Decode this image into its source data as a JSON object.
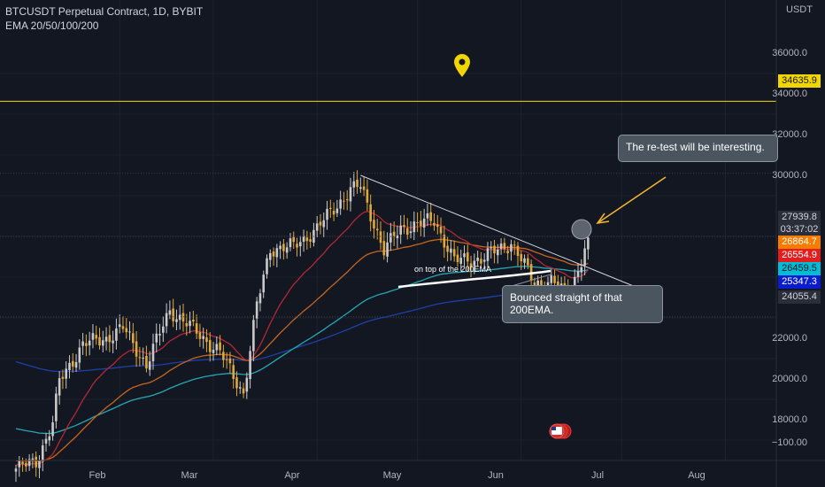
{
  "header": {
    "title": "BTCUSDT Perpetual Contract, 1D, BYBIT",
    "indicator": "EMA 20/50/100/200"
  },
  "currency_label": "USDT",
  "y_axis": {
    "ticks": [
      "36000.0",
      "34000.0",
      "32000.0",
      "30000.0",
      "22000.0",
      "20000.0",
      "18000.0",
      "−100.00"
    ]
  },
  "x_axis": {
    "ticks": [
      "Feb",
      "Mar",
      "Apr",
      "May",
      "Jun",
      "Jul",
      "Aug"
    ]
  },
  "price_tags": {
    "alert_level": "34635.9",
    "last_price": "27939.8",
    "countdown": "03:37:02",
    "ema_20": "26864.7",
    "ema_50": "26554.9",
    "ema_100": "26459.5",
    "ema_200": "25347.3",
    "support_level": "24055.4"
  },
  "annotations": {
    "retest": "The re-test will be interesting.",
    "bounce": "Bounced straight of that 200EMA.",
    "ema_note": "on top of the 200EMA"
  },
  "colors": {
    "background": "#131722",
    "up_candle": "#c9c9c9",
    "down_candle": "#e0a83a",
    "ema_20": "#b22833",
    "ema_50": "#c6661d",
    "ema_100": "#26a7b5",
    "ema_200": "#1f3fa8",
    "alert_line": "#f2d600"
  },
  "chart_data": {
    "type": "candlestick",
    "title": "BTCUSDT Perpetual Contract, 1D, BYBIT",
    "indicators": [
      "EMA 20",
      "EMA 50",
      "EMA 100",
      "EMA 200"
    ],
    "y_unit": "USDT",
    "ylim": [
      16500,
      38000
    ],
    "x_months": [
      "Feb",
      "Mar",
      "Apr",
      "May",
      "Jun",
      "Jul",
      "Aug"
    ],
    "horizontal_levels": [
      34635.9,
      24055.4
    ],
    "trendline": {
      "start": [
        "Apr 14",
        31000
      ],
      "end": [
        "Jul 10",
        25200
      ]
    },
    "ema_last": {
      "ema_20": 26864.7,
      "ema_50": 26554.9,
      "ema_100": 26459.5,
      "ema_200": 25347.3
    },
    "last_close": 27939.8,
    "approx_closes": [
      {
        "date": "Jan 01",
        "close": 16600
      },
      {
        "date": "Jan 07",
        "close": 16950
      },
      {
        "date": "Jan 12",
        "close": 18800
      },
      {
        "date": "Jan 14",
        "close": 20900
      },
      {
        "date": "Jan 21",
        "close": 22700
      },
      {
        "date": "Jan 28",
        "close": 23000
      },
      {
        "date": "Feb 02",
        "close": 23500
      },
      {
        "date": "Feb 09",
        "close": 21700
      },
      {
        "date": "Feb 16",
        "close": 24400
      },
      {
        "date": "Feb 24",
        "close": 23300
      },
      {
        "date": "Mar 03",
        "close": 22300
      },
      {
        "date": "Mar 10",
        "close": 20300
      },
      {
        "date": "Mar 14",
        "close": 24600
      },
      {
        "date": "Mar 18",
        "close": 27400
      },
      {
        "date": "Mar 25",
        "close": 27500
      },
      {
        "date": "Apr 01",
        "close": 28400
      },
      {
        "date": "Apr 11",
        "close": 30300
      },
      {
        "date": "Apr 14",
        "close": 30450
      },
      {
        "date": "Apr 21",
        "close": 27300
      },
      {
        "date": "Apr 26",
        "close": 28400
      },
      {
        "date": "May 06",
        "close": 28800
      },
      {
        "date": "May 12",
        "close": 26800
      },
      {
        "date": "May 20",
        "close": 26900
      },
      {
        "date": "May 29",
        "close": 27700
      },
      {
        "date": "Jun 05",
        "close": 25700
      },
      {
        "date": "Jun 10",
        "close": 25800
      },
      {
        "date": "Jun 15",
        "close": 25100
      },
      {
        "date": "Jun 19",
        "close": 26800
      },
      {
        "date": "Jun 21",
        "close": 27940
      }
    ]
  }
}
